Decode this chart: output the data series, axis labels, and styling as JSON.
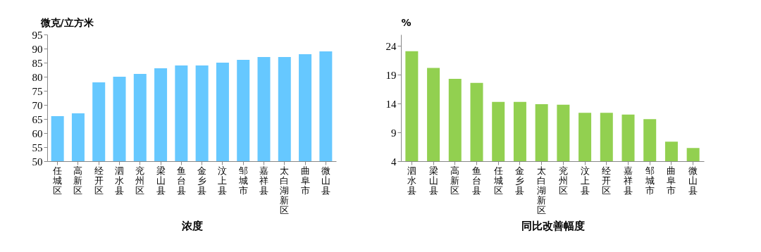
{
  "chart_data": [
    {
      "type": "bar",
      "ylabel": "微克/立方米",
      "xlabel": "浓度",
      "categories": [
        "任城区",
        "高新区",
        "经开区",
        "泗水县",
        "兖州区",
        "梁山县",
        "鱼台县",
        "金乡县",
        "汶上县",
        "邹城市",
        "嘉祥县",
        "太白湖新区",
        "曲阜市",
        "微山县"
      ],
      "values": [
        66,
        67,
        78,
        80,
        81,
        83,
        84,
        84,
        85,
        86,
        87,
        87,
        88,
        89
      ],
      "color": "#66c8ff",
      "ylim": [
        50,
        95
      ],
      "yticks": [
        50,
        55,
        60,
        65,
        70,
        75,
        80,
        85,
        90,
        95
      ],
      "grid": false
    },
    {
      "type": "bar",
      "ylabel": "%",
      "xlabel": "同比改善幅度",
      "categories": [
        "泗水县",
        "梁山县",
        "高新区",
        "鱼台县",
        "任城区",
        "金乡县",
        "太白湖新区",
        "兖州区",
        "汶上县",
        "经开区",
        "嘉祥县",
        "邹城市",
        "曲阜市",
        "微山县"
      ],
      "values": [
        23.1,
        20.2,
        18.3,
        17.6,
        14.3,
        14.3,
        13.9,
        13.8,
        12.4,
        12.4,
        12.1,
        11.3,
        7.4,
        6.3
      ],
      "color": "#92d050",
      "ylim": [
        4,
        26
      ],
      "yticks": [
        4,
        9,
        14,
        19,
        24
      ],
      "grid": false
    }
  ]
}
